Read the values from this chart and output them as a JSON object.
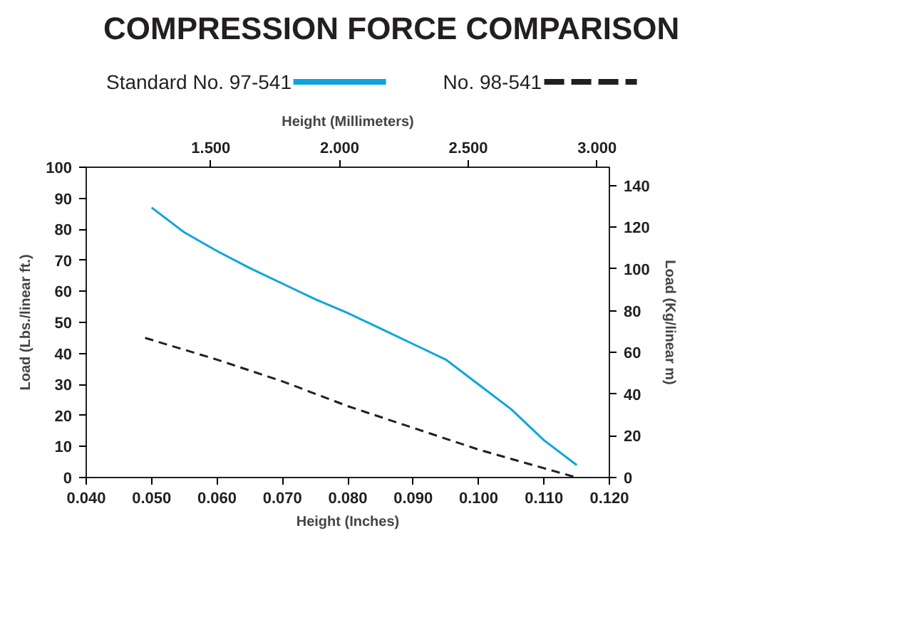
{
  "chart_data": {
    "type": "line",
    "title": "COMPRESSION FORCE COMPARISON",
    "xlabel": "Height (Inches)",
    "x2label": "Height (Millimeters)",
    "ylabel": "Load (Lbs./linear ft.)",
    "y2label": "Load (Kg/linear m)",
    "xlim": [
      0.04,
      0.12
    ],
    "xticks": [
      {
        "value": 0.04,
        "label": "0.040"
      },
      {
        "value": 0.05,
        "label": "0.050"
      },
      {
        "value": 0.06,
        "label": "0.060"
      },
      {
        "value": 0.07,
        "label": "0.070"
      },
      {
        "value": 0.08,
        "label": "0.080"
      },
      {
        "value": 0.09,
        "label": "0.090"
      },
      {
        "value": 0.1,
        "label": "0.100"
      },
      {
        "value": 0.11,
        "label": "0.110"
      },
      {
        "value": 0.12,
        "label": "0.120"
      }
    ],
    "x2lim": [
      1.016,
      3.048
    ],
    "x2ticks": [
      {
        "value": 1.5,
        "label": "1.500"
      },
      {
        "value": 2,
        "label": "2.000"
      },
      {
        "value": 2.5,
        "label": "2.500"
      },
      {
        "value": 3,
        "label": "3.000"
      }
    ],
    "ylim": [
      0,
      100
    ],
    "yticks": [
      0,
      10,
      20,
      30,
      40,
      50,
      60,
      70,
      80,
      90,
      100
    ],
    "y2lim": [
      0,
      148.8
    ],
    "y2ticks": [
      0,
      20,
      40,
      60,
      80,
      100,
      120,
      140
    ],
    "grid": false,
    "legend": "top",
    "series": [
      {
        "name": "Standard No. 97-541",
        "color": "#0ea5dd",
        "line_style": "solid",
        "x": [
          0.05,
          0.055,
          0.06,
          0.065,
          0.07,
          0.075,
          0.08,
          0.085,
          0.09,
          0.095,
          0.1,
          0.105,
          0.11,
          0.115
        ],
        "values": [
          87,
          79,
          73,
          67.5,
          62.5,
          57.5,
          53,
          48,
          43,
          38,
          30,
          22,
          12,
          4
        ]
      },
      {
        "name": "No. 98-541",
        "color": "#231f20",
        "line_style": "dashed",
        "x": [
          0.049,
          0.06,
          0.07,
          0.08,
          0.09,
          0.1,
          0.11,
          0.115
        ],
        "values": [
          45,
          38,
          31,
          23,
          16,
          9,
          3,
          0
        ]
      }
    ]
  }
}
